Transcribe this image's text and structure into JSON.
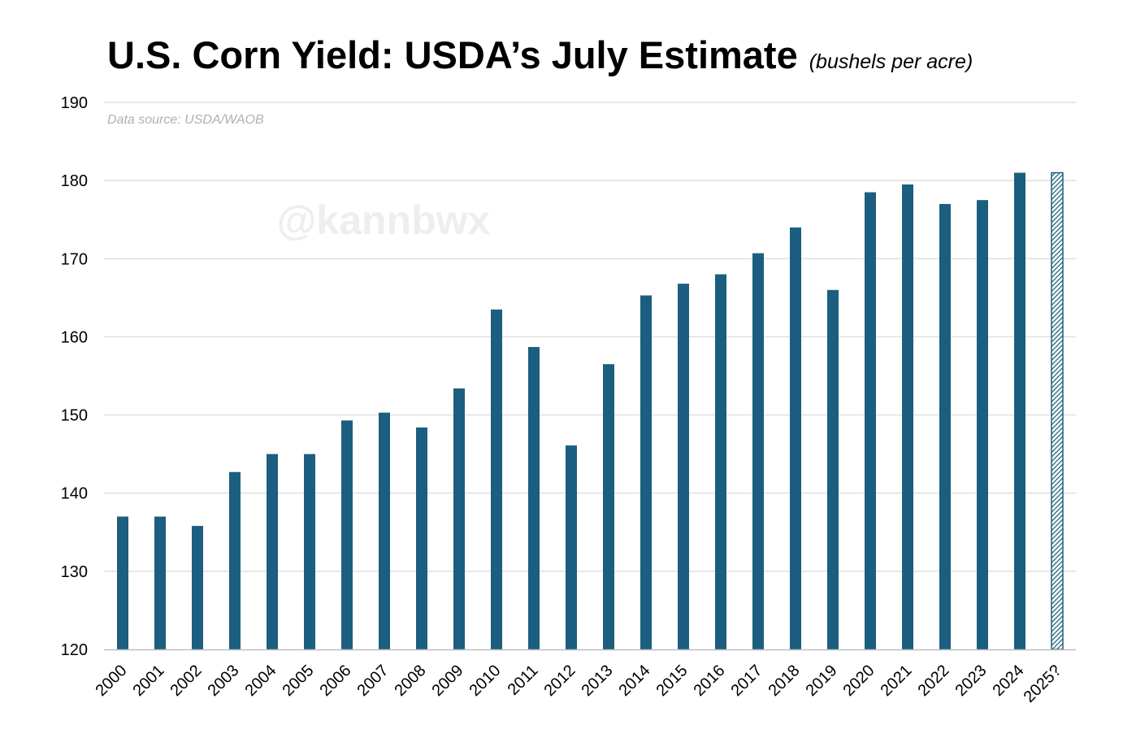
{
  "chart_data": {
    "type": "bar",
    "title": "U.S. Corn Yield: USDA’s July Estimate",
    "subtitle": "(bushels per acre)",
    "source": "Data source: USDA/WAOB",
    "watermark": "@kannbwx",
    "xlabel": "",
    "ylabel": "",
    "ylim": [
      120,
      190
    ],
    "yticks": [
      120,
      130,
      140,
      150,
      160,
      170,
      180,
      190
    ],
    "grid": true,
    "categories": [
      "2000",
      "2001",
      "2002",
      "2003",
      "2004",
      "2005",
      "2006",
      "2007",
      "2008",
      "2009",
      "2010",
      "2011",
      "2012",
      "2013",
      "2014",
      "2015",
      "2016",
      "2017",
      "2018",
      "2019",
      "2020",
      "2021",
      "2022",
      "2023",
      "2024",
      "2025?"
    ],
    "values": [
      137.0,
      137.0,
      135.8,
      142.7,
      145.0,
      145.0,
      149.3,
      150.3,
      148.4,
      153.4,
      163.5,
      158.7,
      146.1,
      156.5,
      165.3,
      166.8,
      168.0,
      170.7,
      174.0,
      166.0,
      178.5,
      179.5,
      177.0,
      177.5,
      181.0,
      181.0
    ],
    "hatched_categories": [
      "2025?"
    ],
    "colors": {
      "bar": "#1b5e80",
      "hatch": "#1b5e80",
      "grid": "#d9d9d9",
      "axis": "#bfbfbf",
      "tick_text": "#000000",
      "source_text": "#b0b0b0",
      "watermark": "#eeeeee"
    }
  }
}
